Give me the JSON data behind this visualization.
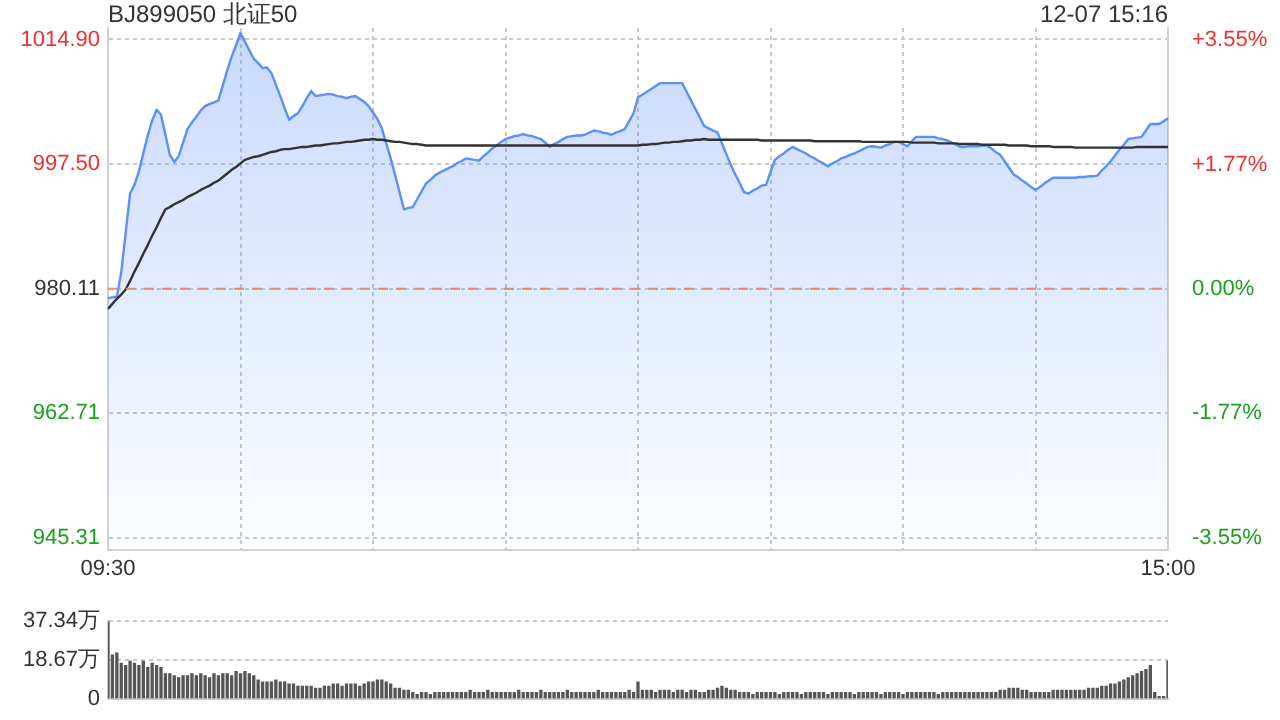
{
  "chart_data": [
    {
      "type": "area",
      "title": "BJ899050 北证50",
      "annotations": [
        "12-07 15:16"
      ],
      "categories": [
        "09:30",
        null,
        null,
        null,
        null,
        null,
        null,
        null,
        null,
        null,
        null,
        null,
        null,
        null,
        null,
        null,
        null,
        null,
        null,
        null,
        null,
        null,
        null,
        null,
        null,
        null,
        null,
        null,
        null,
        null,
        null,
        null,
        null,
        null,
        null,
        null,
        null,
        null,
        null,
        null,
        null,
        null,
        null,
        null,
        null,
        null,
        null,
        null,
        null,
        null,
        null,
        null,
        null,
        null,
        null,
        null,
        null,
        null,
        null,
        null,
        null,
        null,
        null,
        null,
        null,
        null,
        null,
        null,
        null,
        null,
        null,
        null,
        null,
        null,
        null,
        null,
        null,
        null,
        null,
        null,
        null,
        null,
        null,
        null,
        null,
        null,
        null,
        null,
        null,
        null,
        null,
        null,
        null,
        null,
        null,
        null,
        null,
        null,
        null,
        null,
        null,
        null,
        null,
        null,
        null,
        null,
        null,
        null,
        null,
        null,
        null,
        null,
        null,
        null,
        null,
        null,
        null,
        null,
        null,
        null,
        null,
        null,
        null,
        null,
        null,
        null,
        null,
        null,
        null,
        null,
        null,
        null,
        null,
        null,
        null,
        null,
        null,
        null,
        null,
        null,
        null,
        null,
        null,
        null,
        null,
        null,
        null,
        null,
        null,
        null,
        null,
        null,
        null,
        null,
        null,
        null,
        null,
        null,
        null,
        null,
        null,
        null,
        null,
        null,
        null,
        null,
        null,
        null,
        null,
        null,
        null,
        null,
        null,
        null,
        null,
        null,
        null,
        null,
        null,
        null,
        null,
        null,
        null,
        null,
        null,
        null,
        null,
        null,
        null,
        null,
        null,
        null,
        null,
        null,
        null,
        null,
        null,
        null,
        null,
        null,
        null,
        null,
        null,
        null,
        null,
        null,
        null,
        null,
        null,
        null,
        null,
        null,
        null,
        null,
        null,
        null,
        null,
        null,
        null,
        null,
        null,
        null,
        null,
        null,
        null,
        null,
        null,
        null,
        null,
        null,
        null,
        null,
        null,
        null,
        null,
        null,
        null,
        null,
        null,
        null,
        "15:00"
      ],
      "ylim": [
        943.7,
        1016.5
      ],
      "yticks": [
        945.31,
        962.71,
        980.11,
        {
          "value": 997.5,
          "label": "997.50"
        },
        {
          "value": 1014.9,
          "label": "1014.90"
        }
      ],
      "y2lim": [
        -3.715,
        3.713
      ],
      "y2ticks": [
        {
          "value": -3.55,
          "label": "-3.55%"
        },
        {
          "value": -1.77,
          "label": "-1.77%"
        },
        {
          "value": 0,
          "label": "0.00%"
        },
        {
          "value": 1.77,
          "label": "+1.77%"
        },
        {
          "value": 3.55,
          "label": "+3.55%"
        }
      ],
      "ref_lines": [
        {
          "axis": "y",
          "value": 980.11,
          "color": "#e0906a",
          "line_style": "dashed"
        }
      ],
      "grid": true,
      "marker": "none",
      "series": [
        {
          "color": "#5b8ff9",
          "values": [
            978.8,
            978.9,
            979.0,
            982.4,
            987.9,
            993.4,
            994.6,
            996.5,
            999.0,
            1001.5,
            1003.6,
            1005.1,
            1004.4,
            1001.6,
            998.8,
            997.8,
            998.6,
            1000.5,
            1002.4,
            1003.3,
            1004.1,
            1005.0,
            1005.6,
            1005.9,
            1006.1,
            1006.4,
            1008.5,
            1010.6,
            1012.5,
            1014.1,
            1015.8,
            1014.6,
            1013.4,
            1012.2,
            1011.6,
            1010.9,
            1011.0,
            1010.2,
            1008.6,
            1007.0,
            1005.3,
            1003.7,
            1004.2,
            1004.6,
            1005.6,
            1006.7,
            1007.7,
            1007.0,
            1007.1,
            1007.2,
            1007.3,
            1007.2,
            1007.0,
            1006.9,
            1006.7,
            1006.9,
            1007.0,
            1006.6,
            1006.2,
            1005.6,
            1004.7,
            1003.8,
            1002.5,
            1000.4,
            998.3,
            996.0,
            993.6,
            991.2,
            991.4,
            991.5,
            992.6,
            993.7,
            994.8,
            995.3,
            995.9,
            996.3,
            996.6,
            996.9,
            997.2,
            997.6,
            997.9,
            998.3,
            998.2,
            998.1,
            998.0,
            998.6,
            999.1,
            999.7,
            1000.1,
            1000.6,
            1001.0,
            1001.2,
            1001.4,
            1001.5,
            1001.7,
            1001.5,
            1001.4,
            1001.2,
            1001.0,
            1000.5,
            999.9,
            1000.3,
            1000.6,
            1001.0,
            1001.3,
            1001.4,
            1001.5,
            1001.5,
            1001.6,
            1001.9,
            1002.2,
            1002.1,
            1001.9,
            1001.8,
            1001.6,
            1001.9,
            1002.1,
            1002.4,
            1003.5,
            1004.6,
            1006.8,
            1007.2,
            1007.6,
            1008.0,
            1008.4,
            1008.8,
            1008.8,
            1008.8,
            1008.8,
            1008.8,
            1008.8,
            1007.6,
            1006.4,
            1005.2,
            1004.0,
            1002.8,
            1002.5,
            1002.2,
            1001.9,
            1000.4,
            998.9,
            997.4,
            996.1,
            994.9,
            993.6,
            993.4,
            993.8,
            994.1,
            994.5,
            994.6,
            996.4,
            998.1,
            998.6,
            999.0,
            999.5,
            999.9,
            999.6,
            999.3,
            999.0,
            998.6,
            998.3,
            997.9,
            997.6,
            997.2,
            997.6,
            997.9,
            998.3,
            998.5,
            998.8,
            999.0,
            999.3,
            999.6,
            999.9,
            1000.0,
            999.9,
            999.8,
            1000.1,
            1000.3,
            1000.6,
            1000.6,
            1000.3,
            1000.0,
            1000.7,
            1001.3,
            1001.3,
            1001.3,
            1001.3,
            1001.3,
            1001.1,
            1001.0,
            1000.8,
            1000.5,
            1000.2,
            999.9,
            999.9,
            1000.0,
            1000.0,
            1000.0,
            1000.1,
            1000.1,
            999.7,
            999.2,
            998.8,
            997.9,
            997.0,
            996.1,
            995.7,
            995.2,
            994.8,
            994.3,
            993.9,
            994.3,
            994.8,
            995.2,
            995.6,
            995.6,
            995.6,
            995.6,
            995.6,
            995.6,
            995.7,
            995.7,
            995.8,
            995.8,
            995.9,
            996.6,
            997.2,
            997.9,
            998.7,
            999.5,
            1000.2,
            1001.0,
            1001.1,
            1001.2,
            1001.3,
            1002.2,
            1003.1,
            1003.1,
            1003.1,
            1003.5,
            1003.9
          ]
        },
        {
          "type": "line",
          "color": "#333333",
          "values": [
            977.3,
            978.0,
            978.7,
            979.3,
            980.0,
            981.2,
            982.5,
            983.7,
            985.0,
            986.2,
            987.5,
            988.7,
            990.0,
            991.2,
            991.5,
            991.9,
            992.2,
            992.5,
            992.9,
            993.2,
            993.5,
            993.9,
            994.2,
            994.5,
            994.9,
            995.2,
            995.7,
            996.2,
            996.7,
            997.1,
            997.6,
            998.1,
            998.3,
            998.5,
            998.6,
            998.8,
            999.0,
            999.2,
            999.3,
            999.5,
            999.6,
            999.6,
            999.7,
            999.8,
            999.9,
            999.9,
            1000.0,
            1000.1,
            1000.1,
            1000.2,
            1000.3,
            1000.4,
            1000.4,
            1000.5,
            1000.6,
            1000.6,
            1000.7,
            1000.8,
            1000.9,
            1000.9,
            1001.0,
            1000.9,
            1000.9,
            1000.8,
            1000.7,
            1000.6,
            1000.6,
            1000.5,
            1000.4,
            1000.3,
            1000.3,
            1000.2,
            1000.1,
            1000.1,
            1000.1,
            1000.1,
            1000.1,
            1000.1,
            1000.1,
            1000.1,
            1000.1,
            1000.1,
            1000.1,
            1000.1,
            1000.1,
            1000.1,
            1000.1,
            1000.1,
            1000.1,
            1000.1,
            1000.1,
            1000.1,
            1000.1,
            1000.1,
            1000.1,
            1000.1,
            1000.1,
            1000.1,
            1000.1,
            1000.1,
            1000.1,
            1000.1,
            1000.1,
            1000.1,
            1000.1,
            1000.1,
            1000.1,
            1000.1,
            1000.1,
            1000.1,
            1000.1,
            1000.1,
            1000.1,
            1000.1,
            1000.1,
            1000.1,
            1000.1,
            1000.1,
            1000.1,
            1000.1,
            1000.1,
            1000.2,
            1000.2,
            1000.3,
            1000.3,
            1000.4,
            1000.5,
            1000.5,
            1000.6,
            1000.6,
            1000.7,
            1000.8,
            1000.8,
            1000.9,
            1000.9,
            1001.0,
            1000.9,
            1000.9,
            1000.9,
            1000.9,
            1000.9,
            1000.9,
            1000.9,
            1000.9,
            1000.9,
            1000.9,
            1000.9,
            1000.9,
            1000.8,
            1000.8,
            1000.8,
            1000.8,
            1000.8,
            1000.8,
            1000.8,
            1000.8,
            1000.8,
            1000.8,
            1000.8,
            1000.8,
            1000.7,
            1000.7,
            1000.7,
            1000.7,
            1000.7,
            1000.7,
            1000.7,
            1000.7,
            1000.7,
            1000.7,
            1000.7,
            1000.6,
            1000.6,
            1000.6,
            1000.6,
            1000.6,
            1000.6,
            1000.6,
            1000.6,
            1000.6,
            1000.6,
            1000.6,
            1000.5,
            1000.5,
            1000.5,
            1000.5,
            1000.5,
            1000.5,
            1000.4,
            1000.4,
            1000.4,
            1000.4,
            1000.4,
            1000.3,
            1000.3,
            1000.3,
            1000.3,
            1000.3,
            1000.2,
            1000.2,
            1000.2,
            1000.2,
            1000.2,
            1000.2,
            1000.1,
            1000.1,
            1000.1,
            1000.1,
            1000.1,
            1000.0,
            1000.0,
            1000.0,
            1000.0,
            1000.0,
            999.9,
            999.9,
            999.9,
            999.9,
            999.9,
            999.8,
            999.8,
            999.8,
            999.8,
            999.8,
            999.8,
            999.8,
            999.8,
            999.8,
            999.8,
            999.8,
            999.8,
            999.8,
            999.8,
            999.9,
            999.9,
            999.9,
            999.9,
            999.9,
            999.9,
            999.9,
            999.9
          ]
        }
      ]
    },
    {
      "type": "bar",
      "ylim": [
        0,
        37.34
      ],
      "yticks": [
        0,
        {
          "value": 18.67,
          "label": "18.67万"
        },
        {
          "value": 37.34,
          "label": "37.34万"
        }
      ],
      "grid": "y",
      "categories": [
        null,
        null,
        null,
        null,
        null,
        null,
        null,
        null,
        null,
        null,
        null,
        null,
        null,
        null,
        null,
        null,
        null,
        null,
        null,
        null,
        null,
        null,
        null,
        null,
        null,
        null,
        null,
        null,
        null,
        null,
        null,
        null,
        null,
        null,
        null,
        null,
        null,
        null,
        null,
        null,
        null,
        null,
        null,
        null,
        null,
        null,
        null,
        null,
        null,
        null,
        null,
        null,
        null,
        null,
        null,
        null,
        null,
        null,
        null,
        null,
        null,
        null,
        null,
        null,
        null,
        null,
        null,
        null,
        null,
        null,
        null,
        null,
        null,
        null,
        null,
        null,
        null,
        null,
        null,
        null,
        null,
        null,
        null,
        null,
        null,
        null,
        null,
        null,
        null,
        null,
        null,
        null,
        null,
        null,
        null,
        null,
        null,
        null,
        null,
        null,
        null,
        null,
        null,
        null,
        null,
        null,
        null,
        null,
        null,
        null,
        null,
        null,
        null,
        null,
        null,
        null,
        null,
        null,
        null,
        null,
        null,
        null,
        null,
        null,
        null,
        null,
        null,
        null,
        null,
        null,
        null,
        null,
        null,
        null,
        null,
        null,
        null,
        null,
        null,
        null,
        null,
        null,
        null,
        null,
        null,
        null,
        null,
        null,
        null,
        null,
        null,
        null,
        null,
        null,
        null,
        null,
        null,
        null,
        null,
        null,
        null,
        null,
        null,
        null,
        null,
        null,
        null,
        null,
        null,
        null,
        null,
        null,
        null,
        null,
        null,
        null,
        null,
        null,
        null,
        null,
        null,
        null,
        null,
        null,
        null,
        null,
        null,
        null,
        null,
        null,
        null,
        null,
        null,
        null,
        null,
        null,
        null,
        null,
        null,
        null,
        null,
        null,
        null,
        null,
        null,
        null,
        null,
        null,
        null,
        null,
        null,
        null,
        null,
        null,
        null,
        null,
        null,
        null,
        null,
        null,
        null,
        null,
        null,
        null,
        null,
        null,
        null,
        null,
        null,
        null,
        null,
        null,
        null,
        null,
        null,
        null,
        null,
        null,
        null,
        null,
        null
      ],
      "series": [
        {
          "color": "#555555",
          "values": [
            37,
            21,
            22,
            17,
            16,
            18,
            17,
            16,
            18,
            15,
            17,
            16,
            15,
            12,
            12,
            11,
            10,
            11,
            11,
            12,
            11,
            12,
            11,
            10,
            12,
            11,
            12,
            12,
            11,
            13,
            12,
            13,
            12,
            11,
            9,
            8,
            8,
            8,
            9,
            8,
            8,
            7,
            7,
            6,
            6,
            6,
            6,
            5,
            5,
            6,
            6,
            7,
            7,
            6,
            7,
            7,
            7,
            6,
            7,
            8,
            8,
            9,
            9,
            8,
            7,
            5,
            5,
            4,
            4,
            3,
            2,
            3,
            3,
            2,
            3,
            3,
            3,
            3,
            3,
            3,
            3,
            3,
            4,
            3,
            3,
            3,
            4,
            3,
            3,
            3,
            3,
            3,
            3,
            4,
            3,
            3,
            3,
            3,
            4,
            3,
            3,
            3,
            3,
            3,
            4,
            3,
            3,
            3,
            3,
            3,
            3,
            4,
            3,
            3,
            3,
            3,
            3,
            3,
            4,
            3,
            8,
            4,
            4,
            4,
            3,
            4,
            4,
            4,
            3,
            4,
            4,
            3,
            4,
            4,
            3,
            3,
            4,
            4,
            5,
            6,
            5,
            4,
            4,
            3,
            3,
            3,
            2,
            3,
            3,
            3,
            3,
            3,
            2,
            3,
            3,
            3,
            3,
            2,
            3,
            3,
            3,
            3,
            3,
            2,
            3,
            3,
            3,
            3,
            3,
            2,
            3,
            3,
            3,
            3,
            3,
            2,
            3,
            3,
            3,
            3,
            2,
            3,
            3,
            3,
            3,
            3,
            3,
            3,
            2,
            3,
            3,
            3,
            3,
            3,
            3,
            3,
            3,
            3,
            3,
            3,
            3,
            3,
            4,
            4,
            5,
            5,
            5,
            4,
            4,
            3,
            3,
            3,
            3,
            3,
            4,
            4,
            4,
            4,
            4,
            4,
            4,
            4,
            5,
            5,
            5,
            6,
            6,
            7,
            7,
            8,
            9,
            10,
            11,
            12,
            13,
            14,
            16,
            3,
            1,
            1,
            18
          ]
        }
      ]
    }
  ]
}
